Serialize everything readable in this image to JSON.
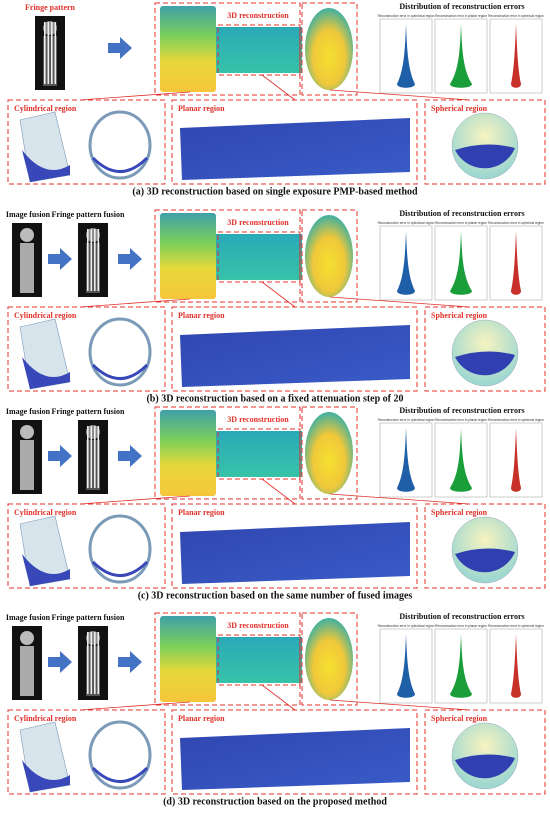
{
  "panels": [
    {
      "inputs": [
        "Fringe pattern"
      ],
      "reconstruction": "3D reconstruction",
      "distribution": "Distribution of reconstruction errors",
      "violin_titles": [
        "Reconstruction error in cylindrical region",
        "Reconstruction error in planar region",
        "Reconstruction error in spherical region"
      ],
      "regions": [
        "Cylindrical region",
        "Planar region",
        "Spherical region"
      ],
      "caption": "(a) 3D reconstruction based on single exposure PMP-based method"
    },
    {
      "inputs": [
        "Image fusion",
        "Fringe pattern fusion"
      ],
      "reconstruction": "3D reconstruction",
      "distribution": "Distribution of reconstruction errors",
      "violin_titles": [
        "Reconstruction error in cylindrical region",
        "Reconstruction error in planar region",
        "Reconstruction error in spherical region"
      ],
      "regions": [
        "Cylindrical region",
        "Planar region",
        "Spherical region"
      ],
      "caption": "(b) 3D reconstruction based on a fixed attenuation step of 20"
    },
    {
      "inputs": [
        "Image fusion",
        "Fringe pattern fusion"
      ],
      "reconstruction": "3D reconstruction",
      "distribution": "Distribution of reconstruction errors",
      "violin_titles": [
        "Reconstruction error in cylindrical region",
        "Reconstruction error in planar region",
        "Reconstruction error in spherical region"
      ],
      "regions": [
        "Cylindrical region",
        "Planar region",
        "Spherical region"
      ],
      "caption": "(c) 3D reconstruction based on the same number of fused images"
    },
    {
      "inputs": [
        "Image fusion",
        "Fringe pattern fusion"
      ],
      "reconstruction": "3D reconstruction",
      "distribution": "Distribution of reconstruction errors",
      "violin_titles": [
        "Reconstruction error in cylindrical region",
        "Reconstruction error in planar region",
        "Reconstruction error in spherical region"
      ],
      "regions": [
        "Cylindrical region",
        "Planar region",
        "Spherical region"
      ],
      "caption": "(d) 3D reconstruction based on the proposed method"
    }
  ]
}
